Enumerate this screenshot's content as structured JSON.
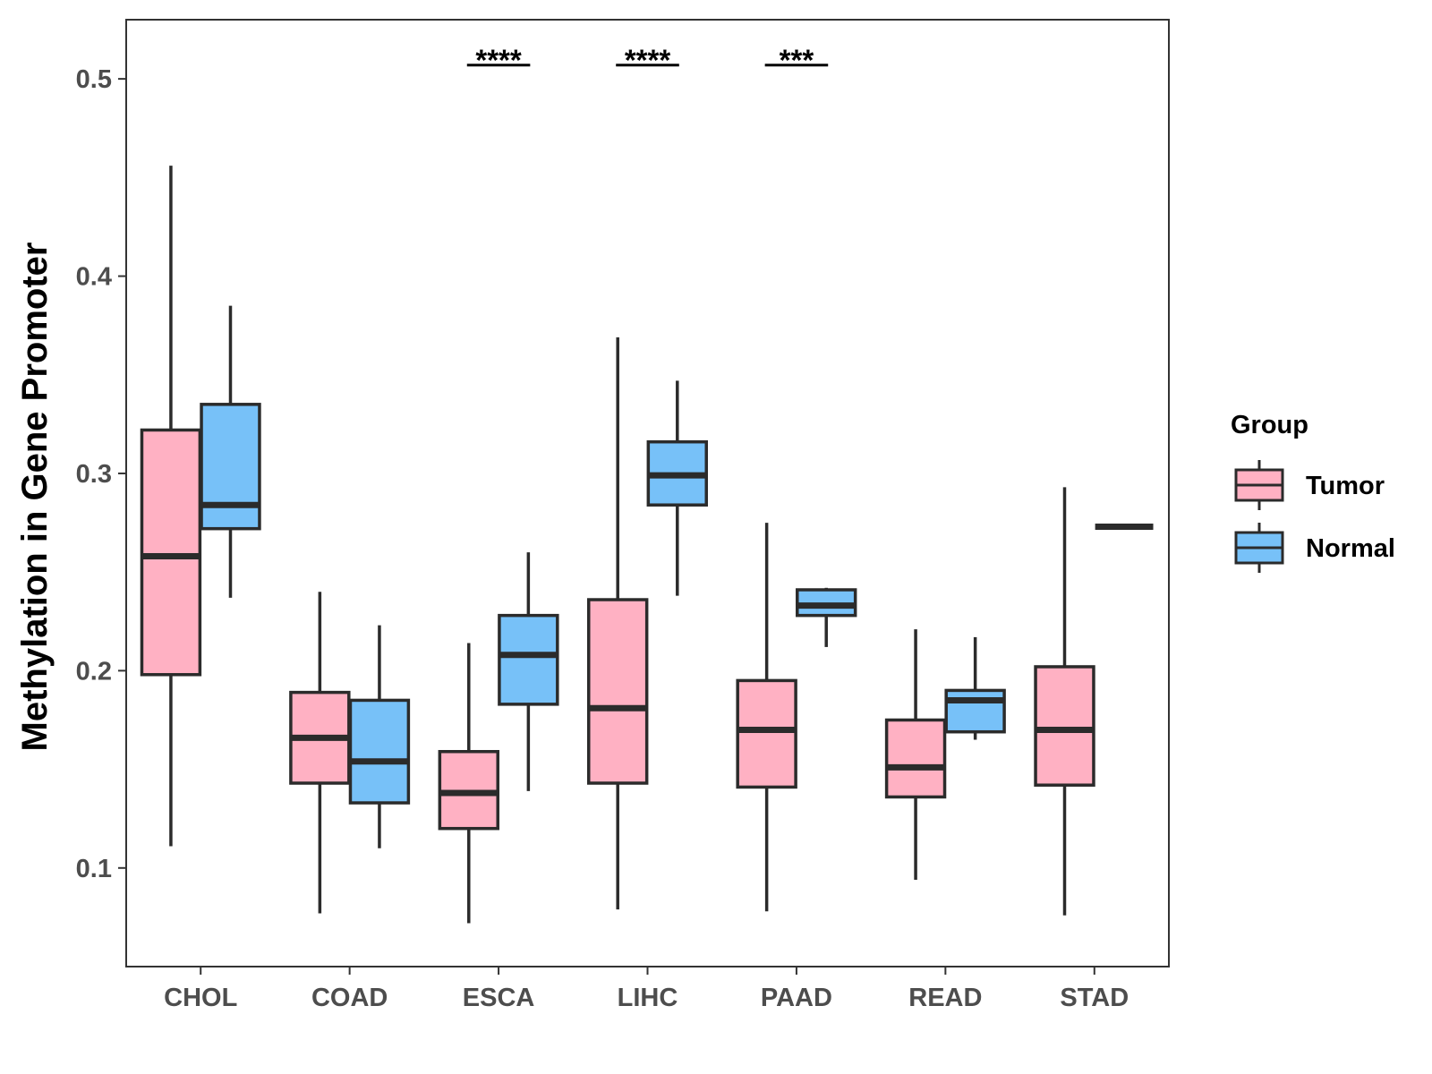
{
  "chart_data": {
    "type": "boxplot",
    "title": "",
    "xlabel": "",
    "ylabel": "Methylation in Gene Promoter",
    "ylim": [
      0.05,
      0.53
    ],
    "yticks": [
      0.1,
      0.2,
      0.3,
      0.4,
      0.5
    ],
    "ytick_labels": [
      "0.1",
      "0.2",
      "0.3",
      "0.4",
      "0.5"
    ],
    "categories": [
      "CHOL",
      "COAD",
      "ESCA",
      "LIHC",
      "PAAD",
      "READ",
      "STAD"
    ],
    "grid": false,
    "legend": {
      "title": "Group",
      "position": "right",
      "entries": [
        {
          "name": "Tumor",
          "color": "#FFB1C3"
        },
        {
          "name": "Normal",
          "color": "#77C1F8"
        }
      ]
    },
    "series": [
      {
        "name": "Tumor",
        "color": "#FFB1C3",
        "boxes": [
          {
            "category": "CHOL",
            "min": 0.111,
            "q1": 0.198,
            "median": 0.258,
            "q3": 0.322,
            "max": 0.456
          },
          {
            "category": "COAD",
            "min": 0.077,
            "q1": 0.143,
            "median": 0.166,
            "q3": 0.189,
            "max": 0.24
          },
          {
            "category": "ESCA",
            "min": 0.072,
            "q1": 0.12,
            "median": 0.138,
            "q3": 0.159,
            "max": 0.214
          },
          {
            "category": "LIHC",
            "min": 0.079,
            "q1": 0.143,
            "median": 0.181,
            "q3": 0.236,
            "max": 0.369
          },
          {
            "category": "PAAD",
            "min": 0.078,
            "q1": 0.141,
            "median": 0.17,
            "q3": 0.195,
            "max": 0.275
          },
          {
            "category": "READ",
            "min": 0.094,
            "q1": 0.136,
            "median": 0.151,
            "q3": 0.175,
            "max": 0.221
          },
          {
            "category": "STAD",
            "min": 0.076,
            "q1": 0.142,
            "median": 0.17,
            "q3": 0.202,
            "max": 0.293
          }
        ]
      },
      {
        "name": "Normal",
        "color": "#77C1F8",
        "boxes": [
          {
            "category": "CHOL",
            "min": 0.237,
            "q1": 0.272,
            "median": 0.284,
            "q3": 0.335,
            "max": 0.385
          },
          {
            "category": "COAD",
            "min": 0.11,
            "q1": 0.133,
            "median": 0.154,
            "q3": 0.185,
            "max": 0.223
          },
          {
            "category": "ESCA",
            "min": 0.139,
            "q1": 0.183,
            "median": 0.208,
            "q3": 0.228,
            "max": 0.26
          },
          {
            "category": "LIHC",
            "min": 0.238,
            "q1": 0.284,
            "median": 0.299,
            "q3": 0.316,
            "max": 0.347
          },
          {
            "category": "PAAD",
            "min": 0.212,
            "q1": 0.228,
            "median": 0.233,
            "q3": 0.241,
            "max": 0.242
          },
          {
            "category": "READ",
            "min": 0.165,
            "q1": 0.169,
            "median": 0.185,
            "q3": 0.19,
            "max": 0.217
          },
          {
            "category": "STAD",
            "min": 0.273,
            "q1": 0.273,
            "median": 0.273,
            "q3": 0.273,
            "max": 0.273
          }
        ]
      }
    ],
    "significance": [
      {
        "category": "ESCA",
        "label": "****",
        "y": 0.507
      },
      {
        "category": "LIHC",
        "label": "****",
        "y": 0.507
      },
      {
        "category": "PAAD",
        "label": "***",
        "y": 0.507
      }
    ]
  }
}
